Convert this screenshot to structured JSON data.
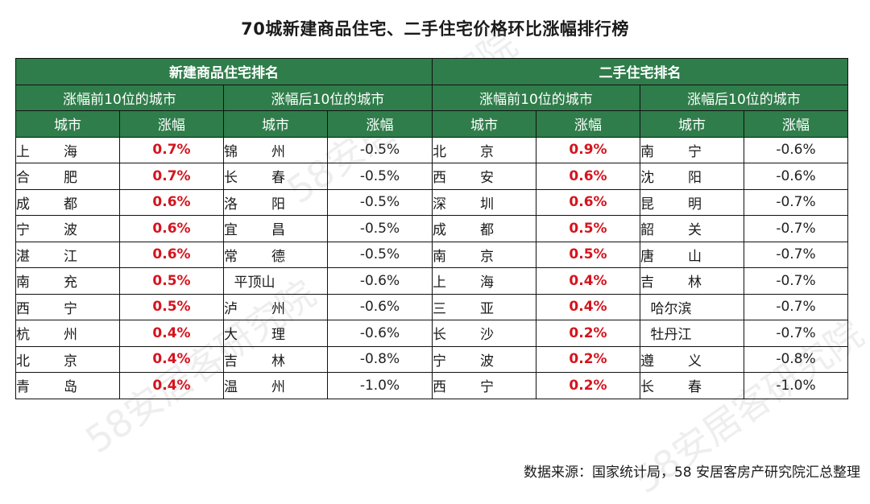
{
  "title": "70城新建商品住宅、二手住宅价格环比涨幅排行榜",
  "source": "数据来源：国家统计局，58 安居客房产研究院汇总整理",
  "watermark": "58安居客研究院",
  "headers": {
    "new": "新建商品住宅排名",
    "second": "二手住宅排名",
    "top10": "涨幅前10位的城市",
    "bottom10": "涨幅后10位的城市",
    "city": "城市",
    "change": "涨幅"
  },
  "rows": [
    {
      "nt_city": "上海",
      "nt_val": "0.7%",
      "nb_city": "锦州",
      "nb_val": "-0.5%",
      "st_city": "北京",
      "st_val": "0.9%",
      "sb_city": "南宁",
      "sb_val": "-0.6%"
    },
    {
      "nt_city": "合肥",
      "nt_val": "0.7%",
      "nb_city": "长春",
      "nb_val": "-0.5%",
      "st_city": "西安",
      "st_val": "0.6%",
      "sb_city": "沈阳",
      "sb_val": "-0.6%"
    },
    {
      "nt_city": "成都",
      "nt_val": "0.6%",
      "nb_city": "洛阳",
      "nb_val": "-0.5%",
      "st_city": "深圳",
      "st_val": "0.6%",
      "sb_city": "昆明",
      "sb_val": "-0.7%"
    },
    {
      "nt_city": "宁波",
      "nt_val": "0.6%",
      "nb_city": "宜昌",
      "nb_val": "-0.5%",
      "st_city": "成都",
      "st_val": "0.5%",
      "sb_city": "韶关",
      "sb_val": "-0.7%"
    },
    {
      "nt_city": "湛江",
      "nt_val": "0.6%",
      "nb_city": "常德",
      "nb_val": "-0.5%",
      "st_city": "南京",
      "st_val": "0.5%",
      "sb_city": "唐山",
      "sb_val": "-0.7%"
    },
    {
      "nt_city": "南充",
      "nt_val": "0.5%",
      "nb_city": "平顶山",
      "nb_val": "-0.6%",
      "st_city": "上海",
      "st_val": "0.4%",
      "sb_city": "吉林",
      "sb_val": "-0.7%"
    },
    {
      "nt_city": "西宁",
      "nt_val": "0.5%",
      "nb_city": "泸州",
      "nb_val": "-0.6%",
      "st_city": "三亚",
      "st_val": "0.4%",
      "sb_city": "哈尔滨",
      "sb_val": "-0.7%"
    },
    {
      "nt_city": "杭州",
      "nt_val": "0.4%",
      "nb_city": "大理",
      "nb_val": "-0.6%",
      "st_city": "长沙",
      "st_val": "0.2%",
      "sb_city": "牡丹江",
      "sb_val": "-0.7%"
    },
    {
      "nt_city": "北京",
      "nt_val": "0.4%",
      "nb_city": "吉林",
      "nb_val": "-0.8%",
      "st_city": "宁波",
      "st_val": "0.2%",
      "sb_city": "遵义",
      "sb_val": "-0.8%"
    },
    {
      "nt_city": "青岛",
      "nt_val": "0.4%",
      "nb_city": "温州",
      "nb_val": "-1.0%",
      "st_city": "西宁",
      "st_val": "0.2%",
      "sb_city": "长春",
      "sb_val": "-1.0%"
    }
  ]
}
